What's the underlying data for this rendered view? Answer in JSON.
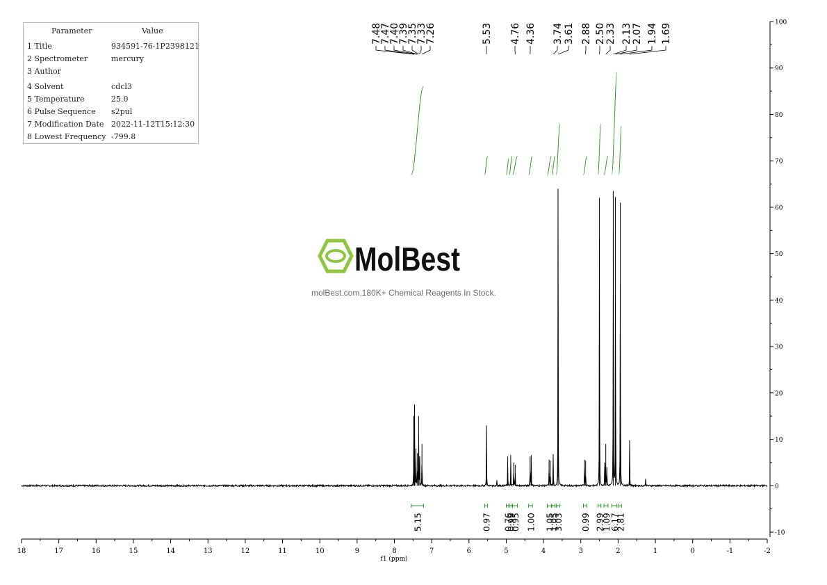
{
  "parameters": {
    "header": {
      "key": "Parameter",
      "value": "Value"
    },
    "rows": [
      {
        "key": "1 Title",
        "value": "934591-76-1P2398121"
      },
      {
        "key": "2 Spectrometer",
        "value": "mercury"
      },
      {
        "key": "3 Author",
        "value": ""
      },
      {
        "key": "4 Solvent",
        "value": "cdcl3"
      },
      {
        "key": "5 Temperature",
        "value": "25.0"
      },
      {
        "key": "6 Pulse Sequence",
        "value": "s2pul"
      },
      {
        "key": "7 Modification Date",
        "value": "2022-11-12T15:12:30"
      },
      {
        "key": "8 Lowest Frequency",
        "value": "-799.8"
      }
    ]
  },
  "watermark": {
    "brand": "MolBest",
    "tagline": "molBest.com,180K+ Chemical Reagents In Stock.",
    "brand_color": "#8cc63f"
  },
  "colors": {
    "spectrum": "#000000",
    "integral": "#2e9a2e",
    "axis": "#000000"
  },
  "chart_data": {
    "type": "line",
    "xlabel": "f1 (ppm)",
    "xlim": [
      18,
      -2
    ],
    "ylim": [
      -10,
      100
    ],
    "x_ticks": [
      "18",
      "17",
      "16",
      "15",
      "14",
      "13",
      "12",
      "11",
      "10",
      "9",
      "8",
      "7",
      "6",
      "5",
      "4",
      "3",
      "2",
      "1",
      "0",
      "-1",
      "-2"
    ],
    "y_ticks": [
      "100",
      "90",
      "80",
      "70",
      "60",
      "50",
      "40",
      "30",
      "20",
      "10",
      "0",
      "-10"
    ],
    "peak_labels": [
      "7.48",
      "7.47",
      "7.40",
      "7.39",
      "7.35",
      "7.33",
      "7.26",
      "5.53",
      "4.76",
      "4.36",
      "3.74",
      "3.61",
      "2.88",
      "2.50",
      "2.33",
      "2.13",
      "2.07",
      "1.94",
      "1.69"
    ],
    "peaks": [
      {
        "ppm": 7.48,
        "height": 15
      },
      {
        "ppm": 7.46,
        "height": 17.5
      },
      {
        "ppm": 7.42,
        "height": 8
      },
      {
        "ppm": 7.38,
        "height": 7
      },
      {
        "ppm": 7.35,
        "height": 15
      },
      {
        "ppm": 7.32,
        "height": 6
      },
      {
        "ppm": 7.26,
        "height": 9
      },
      {
        "ppm": 5.53,
        "height": 13
      },
      {
        "ppm": 5.25,
        "height": 1.3
      },
      {
        "ppm": 4.96,
        "height": 6.3
      },
      {
        "ppm": 4.88,
        "height": 6.6
      },
      {
        "ppm": 4.8,
        "height": 5
      },
      {
        "ppm": 4.76,
        "height": 4.5
      },
      {
        "ppm": 4.36,
        "height": 6.3
      },
      {
        "ppm": 4.33,
        "height": 6.6
      },
      {
        "ppm": 3.85,
        "height": 5.6
      },
      {
        "ppm": 3.82,
        "height": 5.4
      },
      {
        "ppm": 3.74,
        "height": 6.8
      },
      {
        "ppm": 3.61,
        "height": 64
      },
      {
        "ppm": 2.9,
        "height": 5.6
      },
      {
        "ppm": 2.87,
        "height": 5.4
      },
      {
        "ppm": 2.5,
        "height": 62
      },
      {
        "ppm": 2.36,
        "height": 5
      },
      {
        "ppm": 2.33,
        "height": 9
      },
      {
        "ppm": 2.3,
        "height": 4
      },
      {
        "ppm": 2.13,
        "height": 63.5
      },
      {
        "ppm": 2.07,
        "height": 62.2
      },
      {
        "ppm": 1.94,
        "height": 61
      },
      {
        "ppm": 1.69,
        "height": 9.8
      },
      {
        "ppm": 1.26,
        "height": 1.8
      }
    ],
    "integrals": [
      {
        "label": "5.15",
        "from": 7.55,
        "to": 7.22,
        "y_start": 67,
        "y_end": 86
      },
      {
        "label": "0.97",
        "from": 5.58,
        "to": 5.5,
        "y_start": 67,
        "y_end": 71
      },
      {
        "label": "0.76",
        "from": 5.0,
        "to": 4.93,
        "y_start": 67,
        "y_end": 70.5
      },
      {
        "label": "0.99",
        "from": 4.92,
        "to": 4.84,
        "y_start": 67,
        "y_end": 71
      },
      {
        "label": "0.95",
        "from": 4.83,
        "to": 4.7,
        "y_start": 67,
        "y_end": 71
      },
      {
        "label": "1.00",
        "from": 4.4,
        "to": 4.3,
        "y_start": 67,
        "y_end": 71
      },
      {
        "label": "1.05",
        "from": 3.9,
        "to": 3.79,
        "y_start": 67,
        "y_end": 71
      },
      {
        "label": "1.05",
        "from": 3.78,
        "to": 3.69,
        "y_start": 67,
        "y_end": 71
      },
      {
        "label": "3.03",
        "from": 3.66,
        "to": 3.56,
        "y_start": 67,
        "y_end": 78
      },
      {
        "label": "0.99",
        "from": 2.93,
        "to": 2.84,
        "y_start": 67,
        "y_end": 71
      },
      {
        "label": "2.99",
        "from": 2.54,
        "to": 2.46,
        "y_start": 67,
        "y_end": 78
      },
      {
        "label": "1.09",
        "from": 2.38,
        "to": 2.27,
        "y_start": 67,
        "y_end": 71
      },
      {
        "label": "6.17",
        "from": 2.17,
        "to": 2.03,
        "y_start": 67,
        "y_end": 89
      },
      {
        "label": "2.81",
        "from": 1.98,
        "to": 1.91,
        "y_start": 67,
        "y_end": 77.5
      }
    ]
  }
}
